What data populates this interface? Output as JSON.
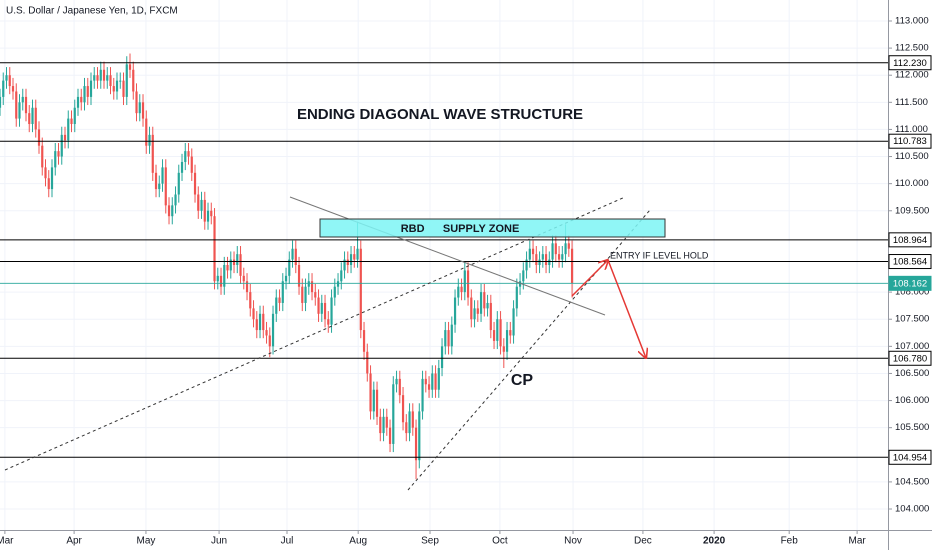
{
  "chart_data": {
    "type": "candlestick",
    "title": "U.S. Dollar / Japanese Yen, 1D, FXCM",
    "annotations": {
      "heading": "ENDING DIAGONAL WAVE STRUCTURE",
      "zone": "RBD      SUPPLY ZONE",
      "entry": "ENTRY IF LEVEL HOLD",
      "wave": "CP"
    },
    "up_color": "#26a69a",
    "down_color": "#ef5350",
    "grid": true,
    "xlim": [
      0,
      273.2
    ],
    "ylim": [
      103.613,
      113.387
    ],
    "xticks": [
      {
        "value": 1.5,
        "label": "Mar"
      },
      {
        "value": 22.8,
        "label": "Apr"
      },
      {
        "value": 44.9,
        "label": "May"
      },
      {
        "value": 67.4,
        "label": "Jun"
      },
      {
        "value": 88.3,
        "label": "Jul"
      },
      {
        "value": 110.2,
        "label": "Aug"
      },
      {
        "value": 132.3,
        "label": "Sep"
      },
      {
        "value": 153.8,
        "label": "Oct"
      },
      {
        "value": 176.3,
        "label": "Nov"
      },
      {
        "value": 197.8,
        "label": "Dec"
      },
      {
        "value": 219.7,
        "label": "2020"
      },
      {
        "value": 242.8,
        "label": "Feb"
      },
      {
        "value": 263.7,
        "label": "Mar"
      }
    ],
    "yticks": [
      {
        "value": 104,
        "label": "104.000"
      },
      {
        "value": 104.5,
        "label": "104.500"
      },
      {
        "value": 105.5,
        "label": "105.500"
      },
      {
        "value": 106,
        "label": "106.000"
      },
      {
        "value": 106.5,
        "label": "106.500"
      },
      {
        "value": 107,
        "label": "107.000"
      },
      {
        "value": 107.5,
        "label": "107.500"
      },
      {
        "value": 108,
        "label": "108.000"
      },
      {
        "value": 109.5,
        "label": "109.500"
      },
      {
        "value": 110,
        "label": "110.000"
      },
      {
        "value": 110.5,
        "label": "110.500"
      },
      {
        "value": 111,
        "label": "111.000"
      },
      {
        "value": 111.5,
        "label": "111.500"
      },
      {
        "value": 112,
        "label": "112.000"
      },
      {
        "value": 112.5,
        "label": "112.500"
      },
      {
        "value": 113,
        "label": "113.000"
      }
    ],
    "levels": [
      {
        "value": 112.23,
        "label": "112.230",
        "color": "#000000"
      },
      {
        "value": 110.783,
        "label": "110.783",
        "color": "#000000"
      },
      {
        "value": 108.964,
        "label": "108.964",
        "color": "#000000"
      },
      {
        "value": 108.564,
        "label": "108.564",
        "color": "#000000"
      },
      {
        "value": 108.162,
        "label": "108.162",
        "color": "#26a69a"
      },
      {
        "value": 106.78,
        "label": "106.780",
        "color": "#000000"
      },
      {
        "value": 104.954,
        "label": "104.954",
        "color": "#000000"
      }
    ],
    "x": [
      0,
      1,
      2,
      3,
      4,
      5,
      6,
      7,
      8,
      9,
      10,
      11,
      12,
      13,
      14,
      15,
      16,
      17,
      18,
      19,
      20,
      21,
      22,
      23,
      24,
      25,
      26,
      27,
      28,
      29,
      30,
      31,
      32,
      33,
      34,
      35,
      36,
      37,
      38,
      39,
      40,
      41,
      42,
      43,
      44,
      45,
      46,
      47,
      48,
      49,
      50,
      51,
      52,
      53,
      54,
      55,
      56,
      57,
      58,
      59,
      60,
      61,
      62,
      63,
      64,
      65,
      66,
      67,
      68,
      69,
      70,
      71,
      72,
      73,
      74,
      75,
      76,
      77,
      78,
      79,
      80,
      81,
      82,
      83,
      84,
      85,
      86,
      87,
      88,
      89,
      90,
      91,
      92,
      93,
      94,
      95,
      96,
      97,
      98,
      99,
      100,
      101,
      102,
      103,
      104,
      105,
      106,
      107,
      108,
      109,
      110,
      111,
      112,
      113,
      114,
      115,
      116,
      117,
      118,
      119,
      120,
      121,
      122,
      123,
      124,
      125,
      126,
      127,
      128,
      129,
      130,
      131,
      132,
      133,
      134,
      135,
      136,
      137,
      138,
      139,
      140,
      141,
      142,
      143,
      144,
      145,
      146,
      147,
      148,
      149,
      150,
      151,
      152,
      153,
      154,
      155,
      156,
      157,
      158,
      159,
      160,
      161,
      162,
      163,
      164,
      165,
      166,
      167,
      168,
      169,
      170,
      171,
      172,
      173,
      174,
      175,
      176
    ],
    "candles": [
      [
        111.4,
        111.75,
        111.25,
        111.6
      ],
      [
        111.6,
        112.05,
        111.45,
        111.9
      ],
      [
        111.9,
        112.15,
        111.75,
        112.0
      ],
      [
        112.0,
        112.15,
        111.65,
        111.8
      ],
      [
        111.8,
        111.95,
        111.55,
        111.7
      ],
      [
        111.7,
        111.85,
        111.05,
        111.2
      ],
      [
        111.2,
        111.65,
        111.05,
        111.5
      ],
      [
        111.5,
        111.75,
        111.35,
        111.6
      ],
      [
        111.6,
        111.75,
        111.15,
        111.3
      ],
      [
        111.3,
        111.45,
        110.95,
        111.1
      ],
      [
        111.1,
        111.55,
        110.95,
        111.4
      ],
      [
        111.4,
        111.55,
        110.85,
        111.0
      ],
      [
        111.0,
        111.15,
        110.55,
        110.7
      ],
      [
        110.7,
        110.85,
        110.15,
        110.3
      ],
      [
        110.3,
        110.45,
        109.95,
        110.1
      ],
      [
        110.1,
        110.25,
        109.75,
        109.9
      ],
      [
        109.9,
        110.45,
        109.75,
        110.3
      ],
      [
        110.3,
        110.75,
        110.15,
        110.6
      ],
      [
        110.6,
        110.75,
        110.35,
        110.5
      ],
      [
        110.5,
        111.05,
        110.35,
        110.9
      ],
      [
        110.9,
        111.05,
        110.65,
        110.8
      ],
      [
        110.8,
        111.35,
        110.65,
        111.2
      ],
      [
        111.2,
        111.35,
        110.95,
        111.1
      ],
      [
        111.1,
        111.55,
        110.95,
        111.4
      ],
      [
        111.4,
        111.75,
        111.25,
        111.6
      ],
      [
        111.6,
        111.75,
        111.35,
        111.5
      ],
      [
        111.5,
        111.95,
        111.35,
        111.8
      ],
      [
        111.8,
        111.95,
        111.45,
        111.6
      ],
      [
        111.6,
        112.05,
        111.45,
        111.9
      ],
      [
        111.9,
        112.15,
        111.75,
        112.0
      ],
      [
        112.0,
        112.15,
        111.75,
        111.9
      ],
      [
        111.9,
        112.25,
        111.75,
        112.1
      ],
      [
        112.1,
        112.25,
        111.75,
        111.9
      ],
      [
        111.9,
        112.15,
        111.75,
        112.0
      ],
      [
        112.0,
        112.15,
        111.65,
        111.8
      ],
      [
        111.8,
        111.95,
        111.55,
        111.7
      ],
      [
        111.7,
        112.05,
        111.55,
        111.9
      ],
      [
        111.9,
        112.05,
        111.75,
        111.9
      ],
      [
        111.9,
        112.05,
        111.45,
        111.6
      ],
      [
        111.6,
        112.35,
        111.45,
        112.2
      ],
      [
        112.2,
        112.4,
        111.95,
        112.1
      ],
      [
        112.1,
        112.25,
        111.55,
        111.7
      ],
      [
        111.7,
        111.85,
        111.15,
        111.3
      ],
      [
        111.3,
        111.65,
        111.15,
        111.5
      ],
      [
        111.5,
        111.65,
        111.05,
        111.2
      ],
      [
        111.2,
        111.35,
        110.55,
        110.7
      ],
      [
        110.7,
        111.05,
        110.55,
        110.9
      ],
      [
        110.9,
        111.05,
        110.05,
        110.2
      ],
      [
        110.2,
        110.35,
        109.75,
        109.9
      ],
      [
        109.9,
        110.15,
        109.75,
        110.0
      ],
      [
        110.0,
        110.45,
        109.85,
        110.3
      ],
      [
        110.3,
        110.45,
        109.45,
        109.6
      ],
      [
        109.6,
        109.75,
        109.25,
        109.4
      ],
      [
        109.4,
        109.75,
        109.25,
        109.6
      ],
      [
        109.6,
        109.95,
        109.45,
        109.8
      ],
      [
        109.8,
        110.35,
        109.65,
        110.2
      ],
      [
        110.2,
        110.55,
        110.05,
        110.4
      ],
      [
        110.4,
        110.75,
        110.25,
        110.6
      ],
      [
        110.6,
        110.75,
        110.35,
        110.5
      ],
      [
        110.5,
        110.65,
        110.05,
        110.2
      ],
      [
        110.2,
        110.35,
        109.65,
        109.8
      ],
      [
        109.8,
        109.95,
        109.35,
        109.5
      ],
      [
        109.5,
        109.85,
        109.35,
        109.7
      ],
      [
        109.7,
        109.85,
        109.15,
        109.3
      ],
      [
        109.3,
        109.65,
        109.15,
        109.5
      ],
      [
        109.5,
        109.65,
        109.25,
        109.4
      ],
      [
        109.4,
        109.55,
        108.05,
        108.2
      ],
      [
        108.2,
        108.45,
        108.05,
        108.3
      ],
      [
        108.3,
        108.45,
        107.95,
        108.1
      ],
      [
        108.1,
        108.65,
        107.95,
        108.5
      ],
      [
        108.5,
        108.65,
        108.25,
        108.4
      ],
      [
        108.4,
        108.75,
        108.25,
        108.6
      ],
      [
        108.6,
        108.75,
        108.35,
        108.5
      ],
      [
        108.5,
        108.85,
        108.35,
        108.7
      ],
      [
        108.7,
        108.85,
        108.15,
        108.3
      ],
      [
        108.3,
        108.45,
        108.05,
        108.2
      ],
      [
        108.2,
        108.35,
        107.85,
        108.0
      ],
      [
        108.0,
        108.15,
        107.55,
        107.7
      ],
      [
        107.7,
        107.85,
        107.35,
        107.5
      ],
      [
        107.5,
        107.65,
        107.15,
        107.3
      ],
      [
        107.3,
        107.75,
        107.15,
        107.6
      ],
      [
        107.6,
        107.75,
        107.15,
        107.3
      ],
      [
        107.3,
        107.45,
        107.05,
        107.2
      ],
      [
        107.2,
        107.35,
        106.8,
        107.0
      ],
      [
        107.0,
        107.75,
        106.85,
        107.6
      ],
      [
        107.6,
        108.05,
        107.45,
        107.9
      ],
      [
        107.9,
        108.05,
        107.65,
        107.8
      ],
      [
        107.8,
        108.35,
        107.65,
        108.2
      ],
      [
        108.2,
        108.45,
        108.05,
        108.3
      ],
      [
        108.3,
        108.75,
        108.15,
        108.6
      ],
      [
        108.6,
        108.95,
        108.45,
        108.8
      ],
      [
        108.8,
        108.95,
        108.35,
        108.5
      ],
      [
        108.5,
        108.65,
        107.95,
        108.1
      ],
      [
        108.1,
        108.25,
        107.65,
        107.8
      ],
      [
        107.8,
        108.25,
        107.65,
        108.1
      ],
      [
        108.1,
        108.35,
        107.95,
        108.2
      ],
      [
        108.2,
        108.35,
        107.85,
        108.0
      ],
      [
        108.0,
        108.15,
        107.75,
        107.9
      ],
      [
        107.9,
        108.05,
        107.45,
        107.6
      ],
      [
        107.6,
        107.95,
        107.45,
        107.8
      ],
      [
        107.8,
        107.95,
        107.35,
        107.5
      ],
      [
        107.5,
        107.65,
        107.25,
        107.4
      ],
      [
        107.4,
        108.05,
        107.25,
        107.9
      ],
      [
        107.9,
        108.25,
        107.75,
        108.1
      ],
      [
        108.1,
        108.35,
        107.95,
        108.2
      ],
      [
        108.2,
        108.55,
        108.05,
        108.4
      ],
      [
        108.4,
        108.75,
        108.25,
        108.6
      ],
      [
        108.6,
        108.75,
        108.35,
        108.5
      ],
      [
        108.5,
        108.85,
        108.35,
        108.7
      ],
      [
        108.7,
        108.85,
        108.45,
        108.6
      ],
      [
        108.6,
        109.3,
        108.45,
        108.8
      ],
      [
        108.8,
        108.95,
        107.15,
        107.3
      ],
      [
        107.3,
        107.45,
        106.75,
        106.9
      ],
      [
        106.9,
        107.05,
        106.35,
        106.5
      ],
      [
        106.5,
        106.65,
        105.65,
        105.8
      ],
      [
        105.8,
        106.35,
        105.65,
        106.2
      ],
      [
        106.2,
        106.35,
        105.55,
        105.7
      ],
      [
        105.7,
        105.85,
        105.25,
        105.4
      ],
      [
        105.4,
        105.85,
        105.25,
        105.7
      ],
      [
        105.7,
        105.85,
        105.35,
        105.5
      ],
      [
        105.5,
        105.65,
        105.05,
        105.2
      ],
      [
        105.2,
        106.45,
        105.05,
        106.3
      ],
      [
        106.3,
        106.55,
        106.15,
        106.4
      ],
      [
        106.4,
        106.55,
        105.95,
        106.1
      ],
      [
        106.1,
        106.25,
        105.45,
        105.6
      ],
      [
        105.6,
        105.75,
        105.25,
        105.4
      ],
      [
        105.4,
        105.95,
        105.25,
        105.8
      ],
      [
        105.8,
        105.95,
        105.35,
        105.5
      ],
      [
        105.5,
        105.65,
        104.55,
        104.9
      ],
      [
        104.9,
        105.95,
        104.75,
        105.8
      ],
      [
        105.8,
        106.55,
        105.65,
        106.4
      ],
      [
        106.4,
        106.55,
        106.15,
        106.3
      ],
      [
        106.3,
        106.45,
        106.05,
        106.2
      ],
      [
        106.2,
        106.65,
        106.05,
        106.5
      ],
      [
        106.5,
        106.65,
        106.05,
        106.2
      ],
      [
        106.2,
        106.75,
        106.05,
        106.6
      ],
      [
        106.6,
        107.15,
        106.45,
        107.0
      ],
      [
        107.0,
        107.45,
        106.85,
        107.3
      ],
      [
        107.3,
        107.45,
        106.85,
        107.0
      ],
      [
        107.0,
        107.55,
        106.85,
        107.4
      ],
      [
        107.4,
        108.05,
        107.25,
        107.9
      ],
      [
        107.9,
        108.25,
        107.75,
        108.1
      ],
      [
        108.1,
        108.25,
        107.85,
        108.0
      ],
      [
        108.0,
        108.55,
        107.85,
        108.4
      ],
      [
        108.4,
        108.55,
        107.75,
        107.9
      ],
      [
        107.9,
        108.05,
        107.35,
        107.5
      ],
      [
        107.5,
        107.85,
        107.35,
        107.7
      ],
      [
        107.7,
        107.85,
        107.45,
        107.6
      ],
      [
        107.6,
        108.15,
        107.45,
        108.0
      ],
      [
        108.0,
        108.15,
        107.55,
        107.7
      ],
      [
        107.7,
        107.95,
        107.55,
        107.8
      ],
      [
        107.8,
        107.95,
        107.15,
        107.3
      ],
      [
        107.3,
        107.45,
        106.95,
        107.1
      ],
      [
        107.1,
        107.65,
        106.95,
        107.5
      ],
      [
        107.5,
        107.65,
        106.85,
        107.0
      ],
      [
        107.0,
        107.15,
        106.6,
        106.9
      ],
      [
        106.9,
        107.45,
        106.75,
        107.3
      ],
      [
        107.3,
        107.45,
        107.05,
        107.2
      ],
      [
        107.2,
        107.85,
        107.05,
        107.7
      ],
      [
        107.7,
        108.25,
        107.55,
        108.1
      ],
      [
        108.1,
        108.35,
        107.95,
        108.2
      ],
      [
        108.2,
        108.55,
        108.05,
        108.4
      ],
      [
        108.4,
        108.75,
        108.25,
        108.6
      ],
      [
        108.6,
        108.95,
        108.45,
        108.8
      ],
      [
        108.8,
        108.95,
        108.55,
        108.7
      ],
      [
        108.7,
        108.85,
        108.35,
        108.5
      ],
      [
        108.5,
        108.75,
        108.35,
        108.6
      ],
      [
        108.6,
        108.85,
        108.45,
        108.7
      ],
      [
        108.7,
        108.85,
        108.35,
        108.5
      ],
      [
        108.5,
        108.75,
        108.35,
        108.6
      ],
      [
        108.6,
        109.05,
        108.45,
        108.9
      ],
      [
        108.9,
        109.05,
        108.55,
        108.7
      ],
      [
        108.7,
        108.85,
        108.45,
        108.6
      ],
      [
        108.6,
        108.85,
        108.45,
        108.7
      ],
      [
        108.7,
        109.25,
        108.55,
        108.9
      ],
      [
        108.9,
        109.05,
        108.65,
        108.8
      ],
      [
        108.8,
        108.95,
        107.9,
        108.162
      ]
    ]
  }
}
